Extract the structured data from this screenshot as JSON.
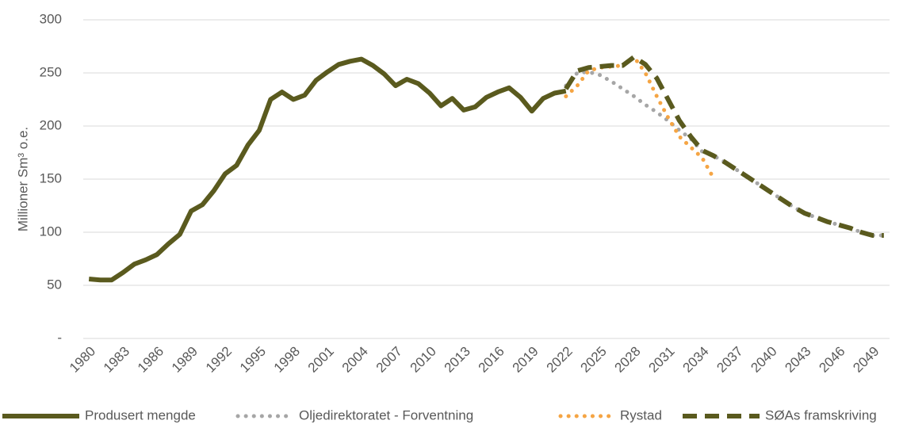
{
  "chart_data": {
    "type": "line",
    "y_label": "Millioner Sm³ o.e.",
    "x": [
      1980,
      1981,
      1982,
      1983,
      1984,
      1985,
      1986,
      1987,
      1988,
      1989,
      1990,
      1991,
      1992,
      1993,
      1994,
      1995,
      1996,
      1997,
      1998,
      1999,
      2000,
      2001,
      2002,
      2003,
      2004,
      2005,
      2006,
      2007,
      2008,
      2009,
      2010,
      2011,
      2012,
      2013,
      2014,
      2015,
      2016,
      2017,
      2018,
      2019,
      2020,
      2021,
      2022,
      2023,
      2024,
      2025,
      2026,
      2027,
      2028,
      2029,
      2030,
      2031,
      2032,
      2033,
      2034,
      2035,
      2036,
      2037,
      2038,
      2039,
      2040,
      2041,
      2042,
      2043,
      2044,
      2045,
      2046,
      2047,
      2048,
      2049,
      2050
    ],
    "xlim": [
      1979.5,
      2050.5
    ],
    "xticks": [
      1980,
      1983,
      1986,
      1989,
      1992,
      1995,
      1998,
      2001,
      2004,
      2007,
      2010,
      2013,
      2016,
      2019,
      2022,
      2025,
      2028,
      2031,
      2034,
      2037,
      2040,
      2043,
      2046,
      2049
    ],
    "ylim": [
      0,
      300
    ],
    "yticks": [
      {
        "value": 0,
        "label": "-"
      },
      50,
      100,
      150,
      200,
      250,
      300
    ],
    "grid": true,
    "legend": "bottom",
    "series": [
      {
        "name": "Produsert mengde",
        "color": "#5a5a1e",
        "style": "solid",
        "values": [
          56,
          55,
          55,
          62,
          70,
          74,
          79,
          89,
          98,
          120,
          126,
          139,
          155,
          163,
          182,
          196,
          225,
          232,
          225,
          229,
          243,
          251,
          258,
          261,
          263,
          257,
          249,
          238,
          244,
          240,
          231,
          219,
          226,
          215,
          218,
          227,
          232,
          236,
          227,
          214,
          226,
          231,
          233,
          null,
          null,
          null,
          null,
          null,
          null,
          null,
          null,
          null,
          null,
          null,
          null,
          null,
          null,
          null,
          null,
          null,
          null,
          null,
          null,
          null,
          null,
          null,
          null,
          null,
          null,
          null,
          null
        ]
      },
      {
        "name": "Oljedirektoratet - Forventning",
        "color": "#a6a6a6",
        "style": "dotted",
        "values": [
          null,
          null,
          null,
          null,
          null,
          null,
          null,
          null,
          null,
          null,
          null,
          null,
          null,
          null,
          null,
          null,
          null,
          null,
          null,
          null,
          null,
          null,
          null,
          null,
          null,
          null,
          null,
          null,
          null,
          null,
          null,
          null,
          null,
          null,
          null,
          null,
          null,
          null,
          null,
          null,
          null,
          null,
          238,
          250,
          251,
          248,
          242,
          235,
          228,
          220,
          213,
          205,
          196,
          188,
          176,
          172,
          166,
          159,
          152,
          145,
          138,
          131,
          124,
          118,
          114,
          110,
          107,
          104,
          100,
          97,
          97
        ]
      },
      {
        "name": "Rystad",
        "color": "#f5a544",
        "style": "dotted",
        "values": [
          null,
          null,
          null,
          null,
          null,
          null,
          null,
          null,
          null,
          null,
          null,
          null,
          null,
          null,
          null,
          null,
          null,
          null,
          null,
          null,
          null,
          null,
          null,
          null,
          null,
          null,
          null,
          null,
          null,
          null,
          null,
          null,
          null,
          null,
          null,
          null,
          null,
          null,
          null,
          null,
          null,
          null,
          228,
          238,
          252,
          255,
          256,
          257,
          265,
          250,
          228,
          208,
          190,
          180,
          170,
          151,
          null,
          null,
          null,
          null,
          null,
          null,
          null,
          null,
          null,
          null,
          null,
          null,
          null,
          null,
          null
        ]
      },
      {
        "name": "SØAs framskriving",
        "color": "#5a5a1e",
        "style": "dashed",
        "values": [
          null,
          null,
          null,
          null,
          null,
          null,
          null,
          null,
          null,
          null,
          null,
          null,
          null,
          null,
          null,
          null,
          null,
          null,
          null,
          null,
          null,
          null,
          null,
          null,
          null,
          null,
          null,
          null,
          null,
          null,
          null,
          null,
          null,
          null,
          null,
          null,
          null,
          null,
          null,
          null,
          null,
          null,
          235,
          252,
          255,
          256,
          257,
          257,
          265,
          258,
          245,
          225,
          205,
          190,
          177,
          172,
          166,
          159,
          152,
          145,
          138,
          131,
          124,
          118,
          114,
          110,
          107,
          104,
          100,
          97,
          97
        ]
      }
    ]
  }
}
